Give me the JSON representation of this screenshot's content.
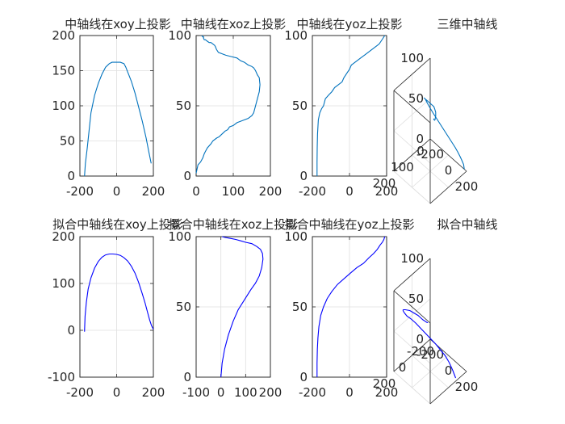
{
  "chart_data": [
    {
      "type": "line",
      "title": "中轴线在xoy上投影",
      "xlim": [
        -200,
        200
      ],
      "ylim": [
        0,
        200
      ],
      "xticks": [
        -200,
        0,
        200
      ],
      "yticks": [
        0,
        50,
        100,
        150,
        200
      ],
      "grid": true,
      "series": [
        {
          "color": "#0072bd",
          "x": [
            -175,
            -170,
            -160,
            -150,
            -140,
            -120,
            -100,
            -80,
            -60,
            -40,
            -25,
            -10,
            0,
            20,
            40,
            50,
            60,
            80,
            100,
            120,
            140,
            160,
            175,
            188
          ],
          "y": [
            0,
            18,
            40,
            65,
            90,
            115,
            132,
            145,
            155,
            160,
            162,
            162,
            162,
            162,
            160,
            155,
            148,
            135,
            118,
            98,
            78,
            55,
            35,
            18
          ]
        }
      ]
    },
    {
      "type": "line",
      "title": "中轴线在xoz上投影",
      "xlim": [
        0,
        200
      ],
      "ylim": [
        0,
        100
      ],
      "xticks": [
        0,
        100,
        200
      ],
      "yticks": [
        0,
        50,
        100
      ],
      "grid": true,
      "series": [
        {
          "color": "#0072bd",
          "x": [
            0,
            5,
            12,
            18,
            22,
            30,
            40,
            45,
            55,
            62,
            70,
            78,
            85,
            90,
            100,
            110,
            120,
            130,
            140,
            150,
            155,
            160,
            165,
            170,
            172,
            170,
            165,
            160,
            155,
            150,
            140,
            130,
            120,
            110,
            95,
            80,
            70,
            60,
            55,
            52,
            50,
            45,
            40,
            35,
            30,
            25,
            22,
            20,
            20,
            18,
            15
          ],
          "y": [
            2,
            8,
            10,
            13,
            16,
            20,
            23,
            25,
            27,
            28,
            30,
            32,
            33,
            35,
            36,
            38,
            39,
            40,
            41,
            43,
            45,
            50,
            55,
            60,
            65,
            70,
            72,
            75,
            77,
            78,
            79,
            81,
            82,
            84,
            85,
            86,
            87,
            88,
            90,
            92,
            93,
            94,
            95,
            95,
            96,
            97,
            97,
            98,
            99,
            99,
            100
          ]
        }
      ]
    },
    {
      "type": "line",
      "title": "中轴线在yoz上投影",
      "xlim": [
        -200,
        200
      ],
      "ylim": [
        0,
        100
      ],
      "xticks": [
        -200,
        0,
        200
      ],
      "yticks": [
        0,
        50,
        100
      ],
      "grid": true,
      "series": [
        {
          "color": "#0072bd",
          "x": [
            -175,
            -175,
            -174,
            -172,
            -168,
            -160,
            -150,
            -140,
            -130,
            -110,
            -95,
            -80,
            -60,
            -40,
            -30,
            -20,
            -10,
            0,
            10,
            20,
            40,
            60,
            80,
            100,
            120,
            140,
            150,
            160,
            170,
            180,
            190
          ],
          "y": [
            0,
            10,
            20,
            30,
            40,
            45,
            48,
            50,
            55,
            58,
            60,
            63,
            65,
            67,
            70,
            72,
            74,
            76,
            79,
            80,
            82,
            84,
            86,
            88,
            90,
            92,
            93,
            94,
            96,
            98,
            100
          ]
        }
      ]
    },
    {
      "type": "line",
      "title": "三维中轴线",
      "grid": true,
      "xticks": [
        -200,
        0,
        200
      ],
      "yticks": [
        0,
        100,
        200
      ],
      "zticks": [
        0,
        50,
        100
      ],
      "series": [
        {
          "color": "#0072bd",
          "x": [
            175,
            168,
            160,
            150,
            135,
            115,
            85,
            55,
            25,
            -5,
            -35,
            -65,
            -90,
            -110,
            -125,
            -130,
            -120,
            -95,
            -65,
            -30,
            5,
            40,
            70,
            100,
            120,
            140,
            155,
            165,
            172,
            178,
            182,
            188
          ],
          "y": [
            0,
            0,
            5,
            10,
            15,
            20,
            25,
            30,
            35,
            40,
            45,
            50,
            55,
            60,
            65,
            70,
            75,
            80,
            85,
            90,
            95,
            100,
            110,
            120,
            130,
            140,
            150,
            155,
            160,
            165,
            170,
            175
          ],
          "z": [
            0,
            5,
            10,
            15,
            20,
            25,
            30,
            35,
            40,
            45,
            50,
            55,
            60,
            65,
            70,
            72,
            74,
            76,
            78,
            80,
            82,
            84,
            86,
            87,
            88,
            90,
            91,
            92,
            93,
            94,
            96,
            99
          ]
        }
      ]
    },
    {
      "type": "line",
      "title": "拟合中轴线在xoy上投影",
      "xlim": [
        -200,
        200
      ],
      "ylim": [
        -100,
        200
      ],
      "xticks": [
        -200,
        0,
        200
      ],
      "yticks": [
        -100,
        0,
        100,
        200
      ],
      "grid": true,
      "series": [
        {
          "color": "#0000ff",
          "x": [
            -175,
            -172,
            -165,
            -155,
            -140,
            -120,
            -100,
            -80,
            -60,
            -40,
            -20,
            0,
            20,
            40,
            60,
            80,
            100,
            120,
            140,
            155,
            170,
            180,
            190,
            200
          ],
          "y": [
            -3,
            30,
            60,
            88,
            112,
            133,
            147,
            156,
            161,
            163,
            163,
            162,
            160,
            155,
            148,
            137,
            122,
            102,
            78,
            58,
            36,
            22,
            10,
            2
          ]
        }
      ]
    },
    {
      "type": "line",
      "title": "拟合中轴线在xoz上投影",
      "xlim": [
        -100,
        200
      ],
      "ylim": [
        0,
        100
      ],
      "xticks": [
        -100,
        0,
        100,
        200
      ],
      "yticks": [
        0,
        50,
        100
      ],
      "grid": true,
      "series": [
        {
          "color": "#0000ff",
          "x": [
            0,
            5,
            15,
            30,
            50,
            70,
            95,
            120,
            140,
            155,
            165,
            170,
            168,
            160,
            145,
            125,
            100,
            80,
            60,
            45,
            30,
            15,
            5
          ],
          "y": [
            0,
            10,
            20,
            30,
            40,
            48,
            55,
            62,
            67,
            72,
            78,
            84,
            88,
            91,
            93,
            95,
            96,
            97,
            98,
            98.5,
            99,
            99.5,
            100
          ]
        }
      ]
    },
    {
      "type": "line",
      "title": "拟合中轴线在yoz上投影",
      "xlim": [
        -200,
        200
      ],
      "ylim": [
        0,
        100
      ],
      "xticks": [
        -200,
        0,
        200
      ],
      "yticks": [
        0,
        50,
        100
      ],
      "grid": true,
      "series": [
        {
          "color": "#0000ff",
          "x": [
            -175,
            -175,
            -173,
            -170,
            -165,
            -155,
            -140,
            -120,
            -95,
            -65,
            -30,
            5,
            40,
            75,
            105,
            130,
            150,
            165,
            177,
            185,
            190
          ],
          "y": [
            0,
            10,
            20,
            28,
            36,
            44,
            50,
            56,
            61,
            66,
            70,
            74,
            78,
            81,
            85,
            88,
            91,
            94,
            96,
            98,
            100
          ]
        }
      ]
    },
    {
      "type": "line",
      "title": "拟合中轴线",
      "grid": true,
      "xticks": [
        -200,
        0,
        200
      ],
      "yticks": [
        -200,
        0,
        200
      ],
      "zticks": [
        0,
        50,
        100
      ],
      "series": [
        {
          "color": "#0000ff",
          "x": [
            180,
            170,
            150,
            125,
            95,
            60,
            25,
            -10,
            -45,
            -80,
            -110,
            -135,
            -150,
            -155,
            -150,
            -135,
            -110,
            -80,
            -50,
            -15,
            20,
            55,
            90,
            120,
            145,
            165,
            178,
            185
          ],
          "y": [
            -100,
            -80,
            -60,
            -40,
            -20,
            0,
            20,
            40,
            60,
            80,
            100,
            120,
            130,
            140,
            150,
            160,
            165,
            170,
            175,
            180,
            185,
            190,
            195,
            200,
            202,
            205,
            207,
            210
          ],
          "z": [
            0,
            10,
            20,
            28,
            34,
            40,
            45,
            50,
            55,
            60,
            64,
            67,
            70,
            73,
            76,
            79,
            82,
            85,
            88,
            90,
            92,
            94,
            95,
            96,
            97,
            98,
            99,
            100
          ]
        }
      ]
    }
  ]
}
